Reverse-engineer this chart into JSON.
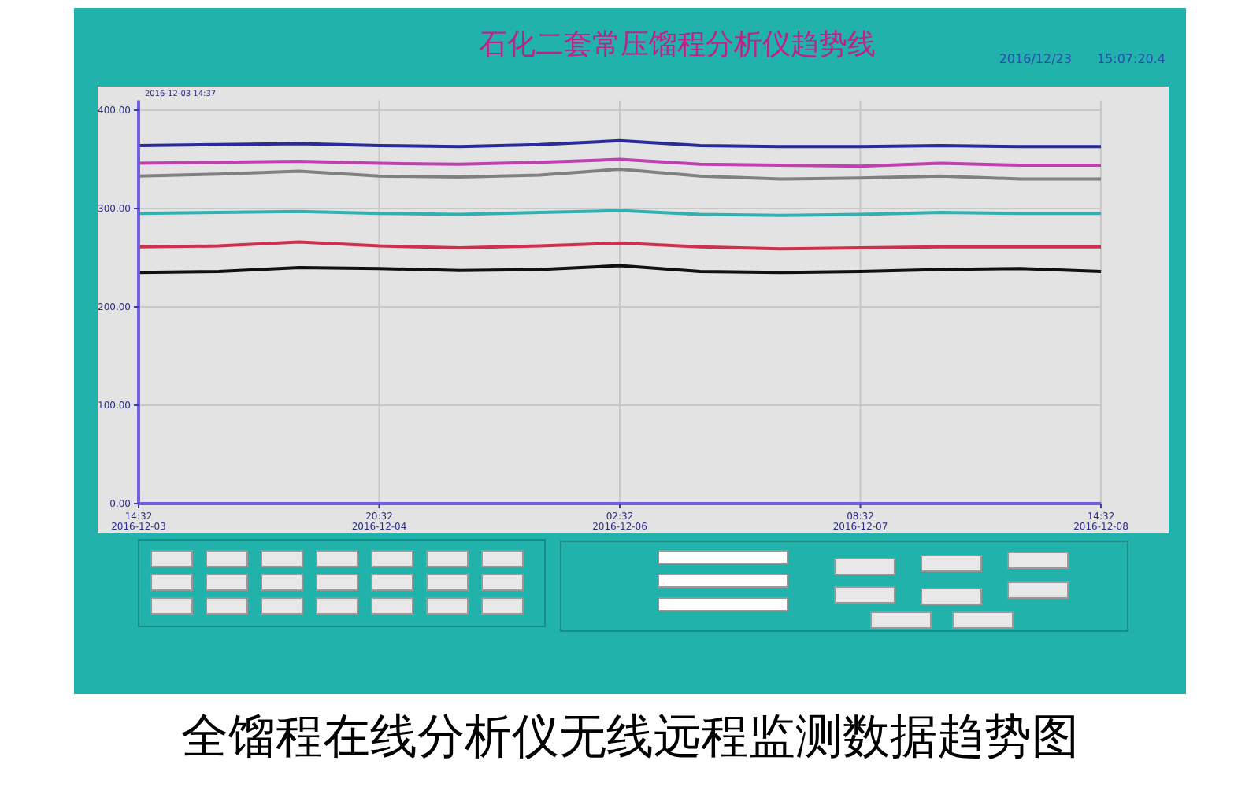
{
  "chart_data": {
    "type": "line",
    "title": "石化二套常压馏程分析仪趋势线",
    "subtitle": "2016/12/23　　15:07:20.4",
    "annotations": [
      "2016-12-03 14:37",
      "全馏程在线分析仪无线远程监测数据趋势图"
    ],
    "xlim": [
      "2016-12-03T14:32",
      "2016-12-08T14:32"
    ],
    "xticks": [
      {
        "value": "2016-12-03T14:32",
        "label": "14:32\n2016-12-03"
      },
      {
        "value": "2016-12-04T20:32",
        "label": "20:32\n2016-12-04"
      },
      {
        "value": "2016-12-06T02:32",
        "label": "02:32\n2016-12-06"
      },
      {
        "value": "2016-12-07T08:32",
        "label": "08:32\n2016-12-07"
      },
      {
        "value": "2016-12-08T14:32",
        "label": "14:32\n2016-12-08"
      }
    ],
    "ylim": [
      0,
      410
    ],
    "yticks": [
      {
        "value": 0,
        "label": "0.00"
      },
      {
        "value": 100,
        "label": "100.00"
      },
      {
        "value": 200,
        "label": "200.00"
      },
      {
        "value": 300,
        "label": "300.00"
      },
      {
        "value": 400,
        "label": "400.00"
      }
    ],
    "grid": true,
    "marker": "none",
    "line_style": "solid",
    "x": [
      "2016-12-03T14:32",
      "2016-12-04T00:32",
      "2016-12-04T10:32",
      "2016-12-04T20:32",
      "2016-12-05T06:32",
      "2016-12-05T16:32",
      "2016-12-06T02:32",
      "2016-12-06T12:32",
      "2016-12-06T22:32",
      "2016-12-07T08:32",
      "2016-12-07T18:32",
      "2016-12-08T04:32",
      "2016-12-08T14:32"
    ],
    "series": [
      {
        "color": "#2a2a9a",
        "values": [
          364,
          365,
          366,
          364,
          363,
          365,
          369,
          364,
          363,
          363,
          364,
          363,
          363
        ]
      },
      {
        "color": "#c040b0",
        "values": [
          346,
          347,
          348,
          346,
          345,
          347,
          350,
          345,
          344,
          343,
          346,
          344,
          344
        ]
      },
      {
        "color": "#808080",
        "values": [
          333,
          335,
          338,
          333,
          332,
          334,
          340,
          333,
          330,
          331,
          333,
          330,
          330
        ]
      },
      {
        "color": "#30b0b0",
        "values": [
          295,
          296,
          297,
          295,
          294,
          296,
          298,
          294,
          293,
          294,
          296,
          295,
          295
        ]
      },
      {
        "color": "#d03050",
        "values": [
          261,
          262,
          266,
          262,
          260,
          262,
          265,
          261,
          259,
          260,
          261,
          261,
          261
        ]
      },
      {
        "color": "#101010",
        "values": [
          235,
          236,
          240,
          239,
          237,
          238,
          242,
          236,
          235,
          236,
          238,
          239,
          236
        ]
      }
    ]
  }
}
